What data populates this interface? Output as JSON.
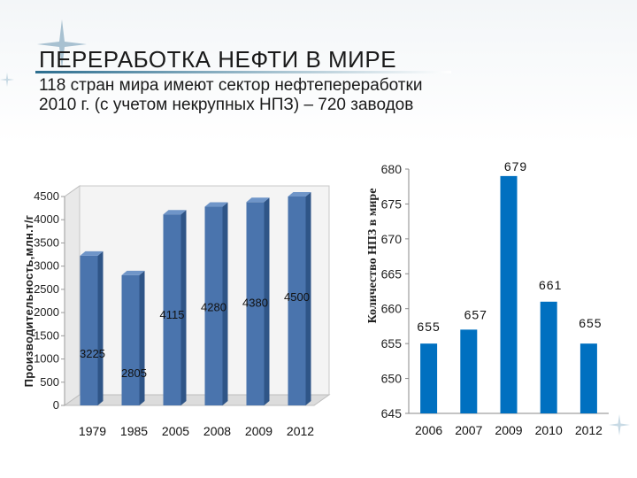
{
  "slide": {
    "title": "ПЕРЕРАБОТКА НЕФТИ В МИРЕ",
    "subtitle_line1": "118 стран мира имеют сектор нефтепереработки",
    "subtitle_line2": "2010 г. (с учетом некрупных НПЗ) – 720 заводов"
  },
  "chart_data": [
    {
      "type": "bar",
      "categories": [
        "1979",
        "1985",
        "2005",
        "2008",
        "2009",
        "2012"
      ],
      "values": [
        3225,
        2805,
        4115,
        4280,
        4380,
        4500
      ],
      "ylabel": "Производительность,млн.т/г",
      "ylim": [
        0,
        4500
      ],
      "yticks": [
        0,
        500,
        1000,
        1500,
        2000,
        2500,
        3000,
        3500,
        4000,
        4500
      ],
      "grid": false,
      "bar_color": "#4a74ad",
      "style": "3d"
    },
    {
      "type": "bar",
      "categories": [
        "2006",
        "2007",
        "2009",
        "2010",
        "2012"
      ],
      "values": [
        655,
        657,
        679,
        661,
        655
      ],
      "ylabel": "Количество НПЗ в мире",
      "ylim": [
        645,
        680
      ],
      "yticks": [
        645,
        650,
        655,
        660,
        665,
        670,
        675,
        680
      ],
      "grid": false,
      "bar_color": "#0070c0"
    }
  ]
}
